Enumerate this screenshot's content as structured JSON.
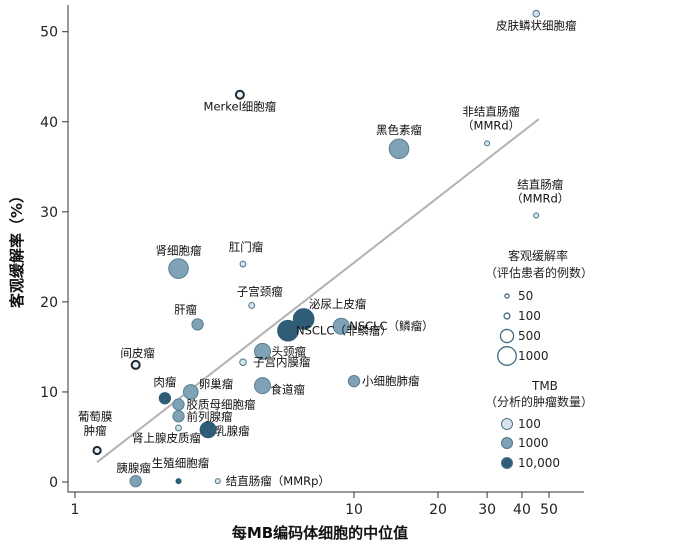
{
  "chart_data": {
    "type": "scatter",
    "xlabel": "每MB编码体细胞的中位值",
    "ylabel": "客观缓解率（%）",
    "x_scale": "log",
    "xlim": [
      1,
      52
    ],
    "ylim": [
      -1,
      53
    ],
    "x_ticks": [
      1,
      10,
      20,
      30,
      40,
      50
    ],
    "y_ticks": [
      0,
      10,
      20,
      30,
      40,
      50
    ],
    "trendline": {
      "x": [
        1.2,
        46
      ],
      "y": [
        2.2,
        40.3
      ],
      "color": "#b3b3b3"
    },
    "points": [
      {
        "label": "皮肤鳞状细胞瘤",
        "x": 45,
        "y": 52,
        "n": 100,
        "tmb": 100
      },
      {
        "label": "Merkel细胞瘤",
        "x": 3.9,
        "y": 43,
        "n": 150,
        "tmb": 150
      },
      {
        "label": "非结直肠瘤（MMRd）",
        "x": 30,
        "y": 37.6,
        "n": 60,
        "tmb": 300
      },
      {
        "label": "黑色素瘤",
        "x": 14.5,
        "y": 37,
        "n": 900,
        "tmb": 1000
      },
      {
        "label": "结直肠瘤（MMRd）",
        "x": 45,
        "y": 29.6,
        "n": 60,
        "tmb": 250
      },
      {
        "label": "肛门瘤",
        "x": 4.0,
        "y": 24.2,
        "n": 80,
        "tmb": 100
      },
      {
        "label": "肾细胞瘤",
        "x": 2.35,
        "y": 23.7,
        "n": 900,
        "tmb": 1000
      },
      {
        "label": "子宫颈瘤",
        "x": 4.3,
        "y": 19.6,
        "n": 80,
        "tmb": 300
      },
      {
        "label": "泌尿上皮瘤",
        "x": 6.6,
        "y": 18.1,
        "n": 1000,
        "tmb": 10000
      },
      {
        "label": "肝瘤",
        "x": 2.75,
        "y": 17.5,
        "n": 300,
        "tmb": 1000
      },
      {
        "label": "NSCLC（鳞瘤）",
        "x": 9.0,
        "y": 17.3,
        "n": 600,
        "tmb": 1200
      },
      {
        "label": "NSCLC（非鳞瘤）",
        "x": 5.8,
        "y": 16.8,
        "n": 1000,
        "tmb": 10000
      },
      {
        "label": "头颈瘤",
        "x": 4.7,
        "y": 14.5,
        "n": 600,
        "tmb": 2000
      },
      {
        "label": "间皮瘤",
        "x": 1.65,
        "y": 13.0,
        "n": 150,
        "tmb": 300
      },
      {
        "label": "子宫内膜瘤",
        "x": 4.0,
        "y": 13.3,
        "n": 100,
        "tmb": 100
      },
      {
        "label": "小细胞肺瘤",
        "x": 10.0,
        "y": 11.2,
        "n": 300,
        "tmb": 1000
      },
      {
        "label": "食道瘤",
        "x": 4.7,
        "y": 10.7,
        "n": 600,
        "tmb": 2000
      },
      {
        "label": "肉瘤",
        "x": 2.1,
        "y": 9.3,
        "n": 300,
        "tmb": 10000
      },
      {
        "label": "卵巢瘤",
        "x": 2.6,
        "y": 10.0,
        "n": 500,
        "tmb": 1200
      },
      {
        "label": "胶质母细胞瘤",
        "x": 2.35,
        "y": 8.6,
        "n": 300,
        "tmb": 1000
      },
      {
        "label": "前列腺瘤",
        "x": 2.35,
        "y": 7.3,
        "n": 300,
        "tmb": 500
      },
      {
        "label": "肾上腺皮质瘤",
        "x": 2.35,
        "y": 6.0,
        "n": 80,
        "tmb": 100
      },
      {
        "label": "乳腺瘤",
        "x": 3.0,
        "y": 5.8,
        "n": 600,
        "tmb": 10000
      },
      {
        "label": "葡萄膜肿瘤",
        "x": 1.2,
        "y": 3.5,
        "n": 120,
        "tmb": 300
      },
      {
        "label": "胰腺瘤",
        "x": 1.65,
        "y": 0.1,
        "n": 300,
        "tmb": 1000
      },
      {
        "label": "生殖细胞瘤",
        "x": 2.35,
        "y": 0.1,
        "n": 60,
        "tmb": 10000
      },
      {
        "label": "结直肠瘤（MMRp）",
        "x": 3.25,
        "y": 0.1,
        "n": 60,
        "tmb": 300
      }
    ],
    "legend": {
      "size_title_1": "客观缓解率",
      "size_title_2": "（评估患者的例数）",
      "size_items": [
        50,
        100,
        500,
        1000
      ],
      "color_title_1": "TMB",
      "color_title_2": "（分析的肿瘤数量）",
      "color_items": [
        "100",
        "1000",
        "10,000"
      ],
      "colors": [
        "#d4e3ec",
        "#7fa2b7",
        "#2f5c76"
      ],
      "placement": "right"
    }
  }
}
